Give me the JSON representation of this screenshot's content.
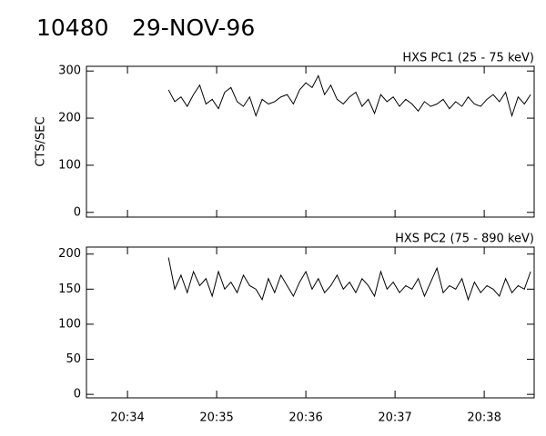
{
  "header": {
    "id": "10480",
    "date": "29-NOV-96"
  },
  "chart_data": [
    {
      "type": "line",
      "title": "HXS PC1 (25 - 75 keV)",
      "y_label": "CTS/SEC",
      "x": [
        1234.46,
        1234.53,
        1234.6,
        1234.67,
        1234.74,
        1234.81,
        1234.88,
        1234.95,
        1235.02,
        1235.09,
        1235.16,
        1235.23,
        1235.3,
        1235.37,
        1235.44,
        1235.51,
        1235.58,
        1235.65,
        1235.72,
        1235.79,
        1235.86,
        1235.93,
        1236.0,
        1236.07,
        1236.14,
        1236.21,
        1236.28,
        1236.35,
        1236.42,
        1236.49,
        1236.56,
        1236.63,
        1236.7,
        1236.77,
        1236.84,
        1236.91,
        1236.98,
        1237.05,
        1237.12,
        1237.19,
        1237.26,
        1237.33,
        1237.4,
        1237.47,
        1237.54,
        1237.61,
        1237.68,
        1237.75,
        1237.82,
        1237.89,
        1237.96,
        1238.03,
        1238.1,
        1238.17,
        1238.24,
        1238.31,
        1238.38,
        1238.45,
        1238.52
      ],
      "values": [
        260,
        235,
        245,
        225,
        250,
        270,
        230,
        240,
        220,
        255,
        265,
        235,
        225,
        245,
        205,
        240,
        230,
        235,
        245,
        250,
        230,
        260,
        275,
        265,
        290,
        250,
        270,
        240,
        230,
        245,
        255,
        225,
        240,
        210,
        250,
        235,
        245,
        225,
        240,
        230,
        215,
        235,
        225,
        230,
        240,
        220,
        235,
        225,
        245,
        230,
        225,
        240,
        250,
        235,
        255,
        205,
        245,
        230,
        250
      ],
      "color": "#000000",
      "xlim": [
        1233.54,
        1238.56
      ],
      "ylim": [
        -10,
        310
      ],
      "yticks": [
        0,
        100,
        200,
        300
      ]
    },
    {
      "type": "line",
      "title": "HXS PC2 (75 - 890 keV)",
      "x": [
        1234.46,
        1234.53,
        1234.6,
        1234.67,
        1234.74,
        1234.81,
        1234.88,
        1234.95,
        1235.02,
        1235.09,
        1235.16,
        1235.23,
        1235.3,
        1235.37,
        1235.44,
        1235.51,
        1235.58,
        1235.65,
        1235.72,
        1235.79,
        1235.86,
        1235.93,
        1236.0,
        1236.07,
        1236.14,
        1236.21,
        1236.28,
        1236.35,
        1236.42,
        1236.49,
        1236.56,
        1236.63,
        1236.7,
        1236.77,
        1236.84,
        1236.91,
        1236.98,
        1237.05,
        1237.12,
        1237.19,
        1237.26,
        1237.33,
        1237.4,
        1237.47,
        1237.54,
        1237.61,
        1237.68,
        1237.75,
        1237.82,
        1237.89,
        1237.96,
        1238.03,
        1238.1,
        1238.17,
        1238.24,
        1238.31,
        1238.38,
        1238.45,
        1238.52
      ],
      "values": [
        195,
        150,
        170,
        145,
        175,
        155,
        165,
        140,
        175,
        150,
        160,
        145,
        170,
        155,
        150,
        135,
        165,
        145,
        170,
        155,
        140,
        160,
        175,
        150,
        165,
        145,
        155,
        170,
        150,
        160,
        145,
        165,
        155,
        140,
        175,
        150,
        160,
        145,
        155,
        150,
        165,
        140,
        160,
        180,
        145,
        155,
        150,
        165,
        135,
        160,
        145,
        155,
        150,
        140,
        165,
        145,
        155,
        150,
        175
      ],
      "color": "#000000",
      "xlim": [
        1233.54,
        1238.56
      ],
      "ylim": [
        -5,
        210
      ],
      "yticks": [
        0,
        50,
        100,
        150,
        200
      ],
      "xticks": [
        {
          "value": 1234,
          "label": "20:34"
        },
        {
          "value": 1235,
          "label": "20:35"
        },
        {
          "value": 1236,
          "label": "20:36"
        },
        {
          "value": 1237,
          "label": "20:37"
        },
        {
          "value": 1238,
          "label": "20:38"
        }
      ]
    }
  ]
}
